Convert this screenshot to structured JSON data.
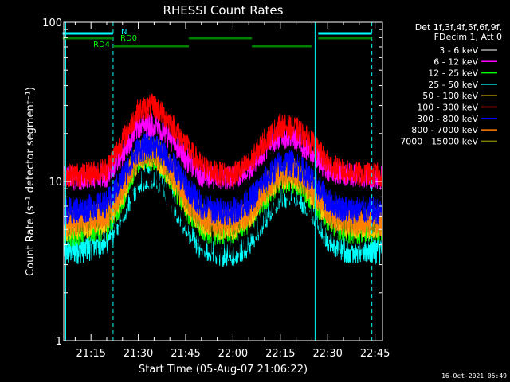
{
  "chart_data": {
    "type": "line",
    "title": "RHESSI Count Rates",
    "xlabel": "Start Time (05-Aug-07 21:06:22)",
    "ylabel": "Count Rate (s⁻¹ detector segment⁻¹)",
    "y_scale": "log",
    "ylim": [
      1,
      100
    ],
    "y_ticks": [
      1,
      10,
      100
    ],
    "y_tick_labels": [
      "1",
      "10",
      "100"
    ],
    "xlim_minutes": [
      0,
      101
    ],
    "x_ticks": [
      "21:15",
      "21:30",
      "21:45",
      "22:00",
      "22:15",
      "22:30",
      "22:45"
    ],
    "legend_position": "top-right",
    "legend_header": [
      "Det 1f,3f,4f,5f,6f,9f,",
      "FDecim 1, Att 0"
    ],
    "series": [
      {
        "name": "3 - 6 keV",
        "color": "#000000",
        "x": [
          "21:07",
          "21:13",
          "21:20",
          "21:25",
          "21:30",
          "21:35",
          "21:40",
          "21:45",
          "21:50",
          "21:55",
          "22:00",
          "22:05",
          "22:10",
          "22:15",
          "22:20",
          "22:25",
          "22:30",
          "22:35",
          "22:40",
          "22:45"
        ],
        "values": [
          5,
          5,
          5.2,
          7,
          11.5,
          11,
          8,
          6,
          4.5,
          4,
          4,
          4.6,
          6.5,
          9,
          8.8,
          7,
          5,
          4.5,
          4.6,
          4.8
        ]
      },
      {
        "name": "6 - 12 keV",
        "color": "#ff00ff",
        "x": [
          "21:07",
          "21:13",
          "21:20",
          "21:25",
          "21:30",
          "21:35",
          "21:40",
          "21:45",
          "21:50",
          "21:55",
          "22:00",
          "22:05",
          "22:10",
          "22:15",
          "22:20",
          "22:25",
          "22:30",
          "22:35",
          "22:40",
          "22:45"
        ],
        "values": [
          10.5,
          10.5,
          11,
          15,
          22,
          23,
          19,
          14,
          11,
          10.5,
          10.5,
          12,
          16,
          19.5,
          18.5,
          15,
          12,
          11,
          10.8,
          10.6
        ]
      },
      {
        "name": "12 - 25 keV",
        "color": "#00ff00",
        "x": [
          "21:07",
          "21:13",
          "21:20",
          "21:25",
          "21:30",
          "21:35",
          "21:40",
          "21:45",
          "21:50",
          "21:55",
          "22:00",
          "22:05",
          "22:10",
          "22:15",
          "22:20",
          "22:25",
          "22:30",
          "22:35",
          "22:40",
          "22:45"
        ],
        "values": [
          4.8,
          5,
          5.3,
          8,
          14,
          14.5,
          11,
          7,
          5.2,
          4.9,
          5,
          5.8,
          8,
          10.5,
          10.2,
          8.2,
          6,
          5.1,
          5,
          5
        ]
      },
      {
        "name": "25 - 50 keV",
        "color": "#00ffff",
        "x": [
          "21:07",
          "21:13",
          "21:20",
          "21:25",
          "21:30",
          "21:35",
          "21:40",
          "21:45",
          "21:50",
          "21:55",
          "22:00",
          "22:05",
          "22:10",
          "22:15",
          "22:20",
          "22:25",
          "22:30",
          "22:35",
          "22:40",
          "22:45"
        ],
        "values": [
          3.7,
          3.9,
          4.3,
          6.5,
          10.5,
          11.5,
          8.5,
          5.5,
          4,
          3.7,
          3.7,
          4.2,
          6.2,
          8.5,
          8.8,
          6.8,
          4.6,
          3.9,
          3.8,
          3.8
        ]
      },
      {
        "name": "50 - 100 keV",
        "color": "#ffcc00",
        "x": [
          "21:07",
          "21:13",
          "21:20",
          "21:25",
          "21:30",
          "21:35",
          "21:40",
          "21:45",
          "21:50",
          "21:55",
          "22:00",
          "22:05",
          "22:10",
          "22:15",
          "22:20",
          "22:25",
          "22:30",
          "22:35",
          "22:40",
          "22:45"
        ],
        "values": [
          5.2,
          5.4,
          5.8,
          8.5,
          14.5,
          15,
          11.5,
          7.5,
          5.6,
          5.3,
          5.3,
          6.1,
          8.5,
          11,
          10.8,
          8.6,
          6.3,
          5.5,
          5.4,
          5.4
        ]
      },
      {
        "name": "100 - 300 keV",
        "color": "#ff0000",
        "x": [
          "21:07",
          "21:13",
          "21:20",
          "21:25",
          "21:30",
          "21:35",
          "21:40",
          "21:45",
          "21:50",
          "21:55",
          "22:00",
          "22:05",
          "22:10",
          "22:15",
          "22:20",
          "22:25",
          "22:30",
          "22:35",
          "22:40",
          "22:45"
        ],
        "values": [
          11,
          11,
          12,
          18,
          28,
          30,
          24,
          17,
          12.5,
          11.2,
          11,
          12.8,
          18,
          22.5,
          21.5,
          17.5,
          13,
          11.5,
          11.1,
          11
        ]
      },
      {
        "name": "300 - 800 keV",
        "color": "#0000ff",
        "x": [
          "21:07",
          "21:13",
          "21:20",
          "21:25",
          "21:30",
          "21:35",
          "21:40",
          "21:45",
          "21:50",
          "21:55",
          "22:00",
          "22:05",
          "22:10",
          "22:15",
          "22:20",
          "22:25",
          "22:30",
          "22:35",
          "22:40",
          "22:45"
        ],
        "values": [
          6.5,
          6.7,
          7.2,
          10.5,
          16,
          17,
          13.5,
          9.5,
          7,
          6.5,
          6.5,
          7.4,
          10,
          13,
          12.8,
          10.3,
          7.6,
          6.7,
          6.6,
          6.5
        ]
      },
      {
        "name": "800 - 7000 keV",
        "color": "#ff8000",
        "x": [
          "21:07",
          "21:13",
          "21:20",
          "21:25",
          "21:30",
          "21:35",
          "21:40",
          "21:45",
          "21:50",
          "21:55",
          "22:00",
          "22:05",
          "22:10",
          "22:15",
          "22:20",
          "22:25",
          "22:30",
          "22:35",
          "22:40",
          "22:45"
        ],
        "values": [
          5.5,
          5.7,
          6.1,
          9,
          15,
          15.5,
          12,
          8,
          5.9,
          5.5,
          5.5,
          6.4,
          9,
          11.5,
          11.3,
          9,
          6.6,
          5.8,
          5.7,
          5.6
        ]
      },
      {
        "name": "7000 - 15000 keV",
        "color": "#808000",
        "x": [
          "21:07",
          "21:13",
          "21:20",
          "21:25",
          "21:30",
          "21:35",
          "21:40",
          "21:45",
          "21:50",
          "21:55",
          "22:00",
          "22:05",
          "22:10",
          "22:15",
          "22:20",
          "22:25",
          "22:30",
          "22:35",
          "22:40",
          "22:45"
        ],
        "values": [
          5.6,
          5.8,
          6.2,
          9.2,
          15.2,
          16,
          12.3,
          8.2,
          6,
          5.6,
          5.6,
          6.5,
          9.1,
          11.7,
          11.5,
          9.1,
          6.7,
          5.9,
          5.8,
          5.7
        ]
      }
    ],
    "annotations": {
      "flags": [
        {
          "label": "N",
          "color": "#00ffff",
          "segments": [
            [
              "21:06",
              "21:22"
            ],
            [
              "22:27",
              "22:44"
            ]
          ]
        },
        {
          "label": "RD0",
          "color": "#008000",
          "segments": [
            [
              "21:06",
              "21:22"
            ],
            [
              "21:46",
              "22:06"
            ],
            [
              "22:27",
              "22:44"
            ]
          ]
        },
        {
          "label": "RD4",
          "color": "#008000",
          "segments": [
            [
              "21:22",
              "21:46"
            ],
            [
              "22:06",
              "22:25"
            ]
          ]
        }
      ],
      "solid_vlines": [
        "21:07",
        "22:26"
      ],
      "dashed_vlines": [
        "21:22",
        "22:44"
      ]
    }
  },
  "timestamp": "16-Oct-2021 05:49"
}
